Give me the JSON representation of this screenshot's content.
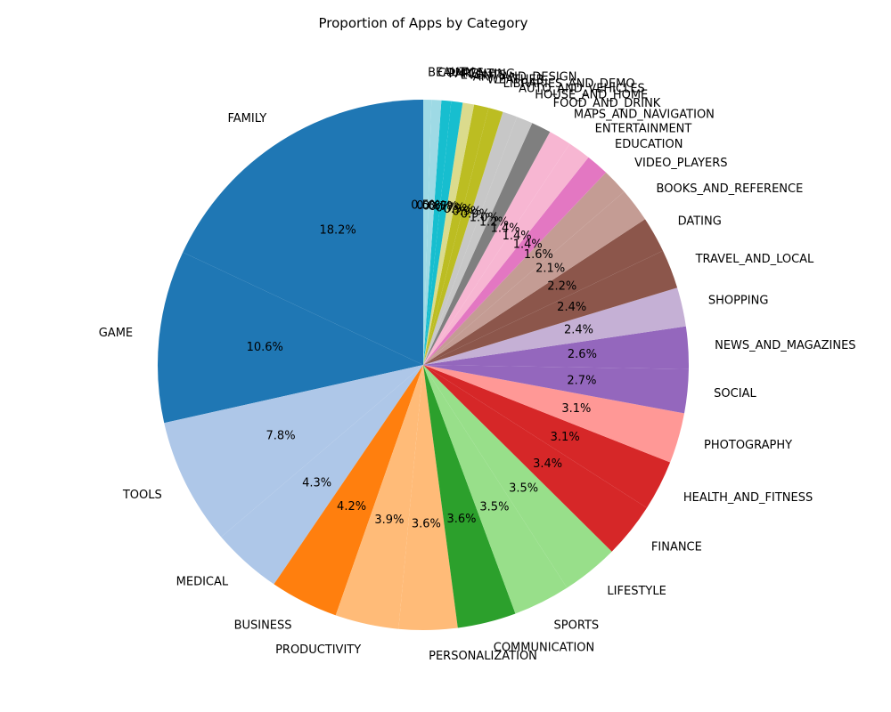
{
  "chart_data": {
    "type": "pie",
    "title": "Proportion of Apps by Category",
    "start_angle_deg": 90,
    "direction": "counterclockwise",
    "slices": [
      {
        "label": "FAMILY",
        "pct_label": "18.2%",
        "value": 18.2,
        "color": "#1f77b4"
      },
      {
        "label": "GAME",
        "pct_label": "10.6%",
        "value": 10.6,
        "color": "#1f77b4"
      },
      {
        "label": "TOOLS",
        "pct_label": "7.8%",
        "value": 7.8,
        "color": "#aec7e8"
      },
      {
        "label": "MEDICAL",
        "pct_label": "4.3%",
        "value": 4.3,
        "color": "#aec7e8"
      },
      {
        "label": "BUSINESS",
        "pct_label": "4.2%",
        "value": 4.2,
        "color": "#ff7f0e"
      },
      {
        "label": "PRODUCTIVITY",
        "pct_label": "3.9%",
        "value": 3.9,
        "color": "#ffbb78"
      },
      {
        "label": "PERSONALIZATION",
        "pct_label": "3.6%",
        "value": 3.6,
        "color": "#ffbb78"
      },
      {
        "label": "COMMUNICATION",
        "pct_label": "3.6%",
        "value": 3.6,
        "color": "#2ca02c"
      },
      {
        "label": "SPORTS",
        "pct_label": "3.5%",
        "value": 3.5,
        "color": "#98df8a"
      },
      {
        "label": "LIFESTYLE",
        "pct_label": "3.5%",
        "value": 3.5,
        "color": "#98df8a"
      },
      {
        "label": "FINANCE",
        "pct_label": "3.4%",
        "value": 3.4,
        "color": "#d62728"
      },
      {
        "label": "HEALTH_AND_FITNESS",
        "pct_label": "3.1%",
        "value": 3.1,
        "color": "#d62728"
      },
      {
        "label": "PHOTOGRAPHY",
        "pct_label": "3.1%",
        "value": 3.1,
        "color": "#ff9896"
      },
      {
        "label": "SOCIAL",
        "pct_label": "2.7%",
        "value": 2.7,
        "color": "#9467bd"
      },
      {
        "label": "NEWS_AND_MAGAZINES",
        "pct_label": "2.6%",
        "value": 2.6,
        "color": "#9467bd"
      },
      {
        "label": "SHOPPING",
        "pct_label": "2.4%",
        "value": 2.4,
        "color": "#c5b0d5"
      },
      {
        "label": "TRAVEL_AND_LOCAL",
        "pct_label": "2.4%",
        "value": 2.4,
        "color": "#8c564b"
      },
      {
        "label": "DATING",
        "pct_label": "2.2%",
        "value": 2.2,
        "color": "#8c564b"
      },
      {
        "label": "BOOKS_AND_REFERENCE",
        "pct_label": "2.1%",
        "value": 2.1,
        "color": "#c49c94"
      },
      {
        "label": "VIDEO_PLAYERS",
        "pct_label": "1.6%",
        "value": 1.6,
        "color": "#c49c94"
      },
      {
        "label": "EDUCATION",
        "pct_label": "1.4%",
        "value": 1.4,
        "color": "#e377c2"
      },
      {
        "label": "ENTERTAINMENT",
        "pct_label": "1.4%",
        "value": 1.4,
        "color": "#f7b6d2"
      },
      {
        "label": "MAPS_AND_NAVIGATION",
        "pct_label": "1.4%",
        "value": 1.4,
        "color": "#f7b6d2"
      },
      {
        "label": "FOOD_AND_DRINK",
        "pct_label": "1.2%",
        "value": 1.2,
        "color": "#7f7f7f"
      },
      {
        "label": "HOUSE_AND_HOME",
        "pct_label": "1.0%",
        "value": 1.0,
        "color": "#c7c7c7"
      },
      {
        "label": "AUTO_AND_VEHICLES",
        "pct_label": "0.9%",
        "value": 0.9,
        "color": "#c7c7c7"
      },
      {
        "label": "LIBRARIES_AND_DEMO",
        "pct_label": "0.9%",
        "value": 0.9,
        "color": "#bcbd22"
      },
      {
        "label": "WEATHER",
        "pct_label": "0.9%",
        "value": 0.9,
        "color": "#bcbd22"
      },
      {
        "label": "ART_AND_DESIGN",
        "pct_label": "0.7%",
        "value": 0.7,
        "color": "#dbdb8d"
      },
      {
        "label": "EVENTS",
        "pct_label": "0.7%",
        "value": 0.7,
        "color": "#17becf"
      },
      {
        "label": "PARENTING",
        "pct_label": "0.6%",
        "value": 0.6,
        "color": "#17becf"
      },
      {
        "label": "COMICS",
        "pct_label": "0.6%",
        "value": 0.6,
        "color": "#9edae5"
      },
      {
        "label": "BEAUTY",
        "pct_label": "0.5%",
        "value": 0.5,
        "color": "#9edae5"
      }
    ]
  }
}
